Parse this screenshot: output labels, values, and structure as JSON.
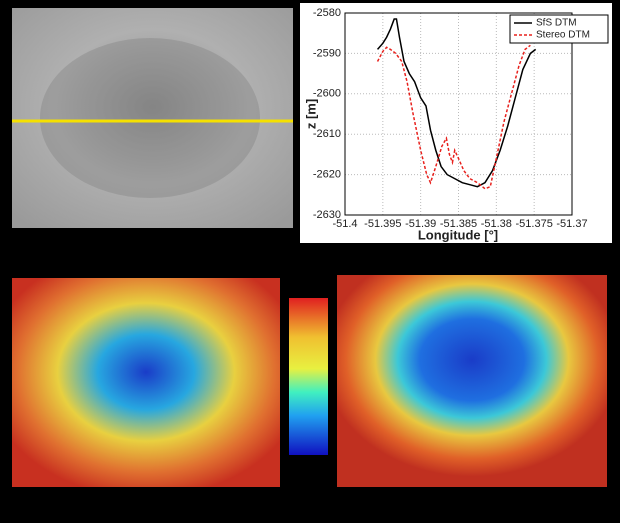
{
  "chart_data": {
    "type": "line",
    "xlabel": "Longitude [°]",
    "ylabel": "z [m]",
    "xlim": [
      -51.4,
      -51.37
    ],
    "xticks": [
      -51.4,
      -51.395,
      -51.39,
      -51.385,
      -51.38,
      -51.375,
      -51.37
    ],
    "ylim": [
      -2630,
      -2580
    ],
    "yticks": [
      -2630,
      -2620,
      -2610,
      -2600,
      -2590,
      -2580
    ],
    "grid": true,
    "legend": "upper-right",
    "series": [
      {
        "name": "SfS DTM",
        "color": "#000000",
        "dash": false,
        "x": [
          -51.3957,
          -51.395,
          -51.3945,
          -51.394,
          -51.3935,
          -51.3932,
          -51.3928,
          -51.3922,
          -51.3915,
          -51.3908,
          -51.39,
          -51.3893,
          -51.3887,
          -51.388,
          -51.3873,
          -51.3865,
          -51.3855,
          -51.3845,
          -51.3835,
          -51.3825,
          -51.3815,
          -51.3805,
          -51.3795,
          -51.3785,
          -51.3775,
          -51.3765,
          -51.3755,
          -51.3748
        ],
        "values": [
          -2589,
          -2587.5,
          -2586,
          -2584,
          -2581.5,
          -2581.5,
          -2586,
          -2592,
          -2595,
          -2597,
          -2601,
          -2603,
          -2609,
          -2614,
          -2618,
          -2620,
          -2621,
          -2622,
          -2622.5,
          -2623,
          -2622,
          -2619,
          -2614,
          -2608,
          -2601,
          -2594,
          -2590,
          -2589
        ]
      },
      {
        "name": "Stereo DTM",
        "color": "#e8201c",
        "dash": true,
        "x": [
          -51.3957,
          -51.395,
          -51.3945,
          -51.394,
          -51.3933,
          -51.3925,
          -51.3918,
          -51.391,
          -51.39,
          -51.3892,
          -51.3887,
          -51.388,
          -51.3872,
          -51.3866,
          -51.3862,
          -51.3858,
          -51.3855,
          -51.385,
          -51.3843,
          -51.3835,
          -51.3825,
          -51.3815,
          -51.3808,
          -51.38,
          -51.379,
          -51.378,
          -51.377,
          -51.3762,
          -51.3755
        ],
        "values": [
          -2592,
          -2589.5,
          -2588.5,
          -2589,
          -2590,
          -2592,
          -2597,
          -2605,
          -2614,
          -2620,
          -2622,
          -2618,
          -2613,
          -2611,
          -2615,
          -2617,
          -2614,
          -2616,
          -2619,
          -2621,
          -2622,
          -2623.5,
          -2623,
          -2616,
          -2607,
          -2600,
          -2593,
          -2589,
          -2588
        ]
      }
    ]
  }
}
